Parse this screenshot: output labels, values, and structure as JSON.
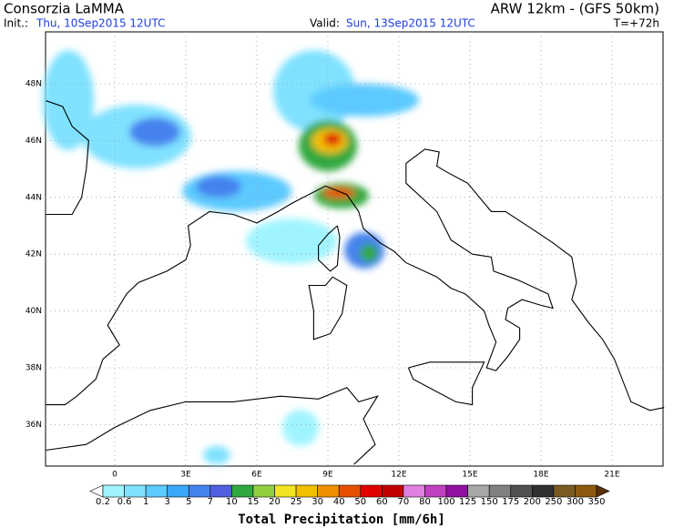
{
  "header": {
    "org": "Consorzia LaMMA",
    "model": "ARW 12km - (GFS 50km)",
    "init_label": "Init.:",
    "init": "Thu, 10Sep2015 12UTC",
    "valid_label": "Valid:",
    "valid": "Sun, 13Sep2015 12UTC",
    "lead": "T=+72h"
  },
  "map": {
    "lat_labels": [
      "48N",
      "46N",
      "44N",
      "42N",
      "40N",
      "38N",
      "36N"
    ],
    "lon_labels": [
      "0",
      "3E",
      "6E",
      "9E",
      "12E",
      "15E",
      "18E",
      "21E"
    ]
  },
  "legend": {
    "title": "Total Precipitation [mm/6h]",
    "levels": [
      "0.2",
      "0.6",
      "1",
      "3",
      "5",
      "7",
      "10",
      "15",
      "20",
      "25",
      "30",
      "40",
      "50",
      "60",
      "70",
      "80",
      "100",
      "125",
      "150",
      "175",
      "200",
      "250",
      "300",
      "350"
    ],
    "colors": [
      "#ffffff",
      "#a0f4ff",
      "#80e2ff",
      "#5ccaff",
      "#3aa8f8",
      "#4482ee",
      "#5060e0",
      "#30a840",
      "#90d040",
      "#f2e420",
      "#f2c000",
      "#f09000",
      "#e85000",
      "#e00000",
      "#c00000",
      "#e080e0",
      "#c040c0",
      "#9010a0",
      "#a8a8a8",
      "#808080",
      "#505050",
      "#303030",
      "#7a5a20",
      "#8b5a10",
      "#5a3008"
    ]
  }
}
